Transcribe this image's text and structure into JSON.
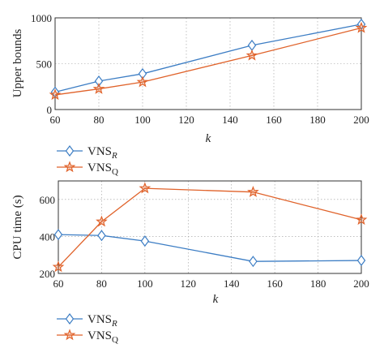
{
  "colors": {
    "vns_r": "#3c7dc4",
    "vns_q": "#e0622a"
  },
  "legend": [
    {
      "base": "VNS",
      "sub": "R",
      "marker": "diamond",
      "color": "#3c7dc4"
    },
    {
      "base": "VNS",
      "sub": "Q",
      "marker": "star",
      "color": "#e0622a"
    }
  ],
  "chart_data": [
    {
      "type": "line",
      "xlabel": "k",
      "ylabel": "Upper bounds",
      "xlim": [
        60,
        200
      ],
      "ylim": [
        0,
        1000
      ],
      "xticks": [
        60,
        80,
        100,
        120,
        140,
        160,
        180,
        200
      ],
      "yticks": [
        0,
        500,
        1000
      ],
      "grid": true,
      "legend_position": "below",
      "series": [
        {
          "name": "VNS_R",
          "marker": "diamond",
          "color": "#3c7dc4",
          "x": [
            60,
            80,
            100,
            150,
            200
          ],
          "y": [
            190,
            310,
            390,
            700,
            930
          ]
        },
        {
          "name": "VNS_Q",
          "marker": "star",
          "color": "#e0622a",
          "x": [
            60,
            80,
            100,
            150,
            200
          ],
          "y": [
            160,
            225,
            300,
            590,
            890
          ]
        }
      ]
    },
    {
      "type": "line",
      "xlabel": "k",
      "ylabel": "CPU time (s)",
      "xlim": [
        60,
        200
      ],
      "ylim": [
        200,
        700
      ],
      "xticks": [
        60,
        80,
        100,
        120,
        140,
        160,
        180,
        200
      ],
      "yticks": [
        200,
        400,
        600
      ],
      "grid": true,
      "legend_position": "below",
      "series": [
        {
          "name": "VNS_R",
          "marker": "diamond",
          "color": "#3c7dc4",
          "x": [
            60,
            80,
            100,
            150,
            200
          ],
          "y": [
            410,
            405,
            375,
            265,
            270
          ]
        },
        {
          "name": "VNS_Q",
          "marker": "star",
          "color": "#e0622a",
          "x": [
            60,
            80,
            100,
            150,
            200
          ],
          "y": [
            235,
            480,
            660,
            640,
            490
          ]
        }
      ]
    }
  ]
}
